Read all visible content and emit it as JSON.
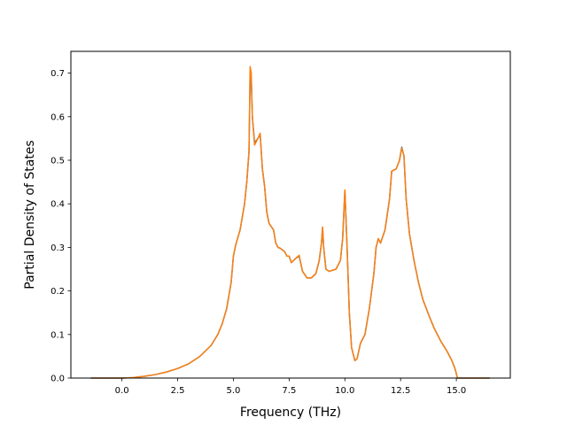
{
  "chart_data": {
    "type": "line",
    "title": "",
    "xlabel": "Frequency (THz)",
    "ylabel": "Partial Density of States",
    "xlim": [
      -2.29,
      17.42
    ],
    "ylim": [
      0.0,
      0.75
    ],
    "xticks": [
      0.0,
      2.5,
      5.0,
      7.5,
      10.0,
      12.5,
      15.0
    ],
    "xtick_labels": [
      "0.0",
      "2.5",
      "5.0",
      "7.5",
      "10.0",
      "12.5",
      "15.0"
    ],
    "yticks": [
      0.0,
      0.1,
      0.2,
      0.3,
      0.4,
      0.5,
      0.6,
      0.7
    ],
    "ytick_labels": [
      "0.0",
      "0.1",
      "0.2",
      "0.3",
      "0.4",
      "0.5",
      "0.6",
      "0.7"
    ],
    "grid": false,
    "legend": "none",
    "series": [
      {
        "color": "#1f77b4",
        "points": [
          [
            -1.4,
            0.0
          ],
          [
            0.0,
            0.0
          ],
          [
            0.5,
            0.001
          ],
          [
            1.0,
            0.004
          ],
          [
            1.5,
            0.008
          ],
          [
            2.0,
            0.014
          ],
          [
            2.5,
            0.022
          ],
          [
            3.0,
            0.033
          ],
          [
            3.5,
            0.05
          ],
          [
            4.0,
            0.075
          ],
          [
            4.3,
            0.1
          ],
          [
            4.5,
            0.125
          ],
          [
            4.7,
            0.16
          ],
          [
            4.9,
            0.22
          ],
          [
            5.0,
            0.28
          ],
          [
            5.1,
            0.305
          ],
          [
            5.3,
            0.34
          ],
          [
            5.5,
            0.4
          ],
          [
            5.6,
            0.45
          ],
          [
            5.7,
            0.52
          ],
          [
            5.75,
            0.7
          ],
          [
            5.8,
            0.69
          ],
          [
            5.85,
            0.6
          ],
          [
            5.95,
            0.54
          ],
          [
            6.1,
            0.55
          ],
          [
            6.2,
            0.56
          ],
          [
            6.3,
            0.48
          ],
          [
            6.4,
            0.44
          ],
          [
            6.5,
            0.38
          ],
          [
            6.6,
            0.355
          ],
          [
            6.8,
            0.34
          ],
          [
            6.9,
            0.31
          ],
          [
            7.0,
            0.3
          ],
          [
            7.1,
            0.298
          ],
          [
            7.3,
            0.29
          ],
          [
            7.4,
            0.28
          ],
          [
            7.5,
            0.28
          ],
          [
            7.6,
            0.265
          ],
          [
            7.8,
            0.275
          ],
          [
            7.95,
            0.28
          ],
          [
            8.1,
            0.245
          ],
          [
            8.3,
            0.23
          ],
          [
            8.5,
            0.23
          ],
          [
            8.7,
            0.24
          ],
          [
            8.85,
            0.27
          ],
          [
            8.95,
            0.31
          ],
          [
            9.0,
            0.345
          ],
          [
            9.05,
            0.3
          ],
          [
            9.15,
            0.25
          ],
          [
            9.3,
            0.245
          ],
          [
            9.6,
            0.25
          ],
          [
            9.8,
            0.27
          ],
          [
            9.9,
            0.32
          ],
          [
            10.0,
            0.43
          ],
          [
            10.1,
            0.3
          ],
          [
            10.2,
            0.15
          ],
          [
            10.3,
            0.07
          ],
          [
            10.45,
            0.04
          ],
          [
            10.55,
            0.045
          ],
          [
            10.7,
            0.08
          ],
          [
            10.9,
            0.1
          ],
          [
            11.1,
            0.16
          ],
          [
            11.3,
            0.24
          ],
          [
            11.4,
            0.3
          ],
          [
            11.5,
            0.32
          ],
          [
            11.6,
            0.31
          ],
          [
            11.8,
            0.34
          ],
          [
            12.0,
            0.41
          ],
          [
            12.1,
            0.475
          ],
          [
            12.3,
            0.48
          ],
          [
            12.45,
            0.5
          ],
          [
            12.55,
            0.53
          ],
          [
            12.65,
            0.51
          ],
          [
            12.75,
            0.41
          ],
          [
            12.9,
            0.33
          ],
          [
            13.1,
            0.27
          ],
          [
            13.3,
            0.22
          ],
          [
            13.5,
            0.18
          ],
          [
            13.8,
            0.14
          ],
          [
            14.0,
            0.115
          ],
          [
            14.3,
            0.085
          ],
          [
            14.6,
            0.06
          ],
          [
            14.8,
            0.04
          ],
          [
            14.95,
            0.02
          ],
          [
            15.05,
            0.0
          ],
          [
            15.5,
            0.0
          ],
          [
            16.5,
            0.0
          ]
        ]
      },
      {
        "color": "#ff7f0e",
        "points": [
          [
            -1.4,
            0.0
          ],
          [
            0.0,
            0.0
          ],
          [
            0.5,
            0.001
          ],
          [
            1.0,
            0.004
          ],
          [
            1.5,
            0.008
          ],
          [
            2.0,
            0.014
          ],
          [
            2.5,
            0.022
          ],
          [
            3.0,
            0.033
          ],
          [
            3.5,
            0.05
          ],
          [
            4.0,
            0.075
          ],
          [
            4.3,
            0.1
          ],
          [
            4.5,
            0.125
          ],
          [
            4.7,
            0.16
          ],
          [
            4.9,
            0.22
          ],
          [
            5.0,
            0.28
          ],
          [
            5.1,
            0.305
          ],
          [
            5.3,
            0.34
          ],
          [
            5.5,
            0.4
          ],
          [
            5.6,
            0.45
          ],
          [
            5.7,
            0.52
          ],
          [
            5.75,
            0.715
          ],
          [
            5.8,
            0.7
          ],
          [
            5.85,
            0.6
          ],
          [
            5.95,
            0.535
          ],
          [
            6.1,
            0.55
          ],
          [
            6.2,
            0.562
          ],
          [
            6.3,
            0.48
          ],
          [
            6.4,
            0.44
          ],
          [
            6.5,
            0.38
          ],
          [
            6.6,
            0.355
          ],
          [
            6.8,
            0.34
          ],
          [
            6.9,
            0.31
          ],
          [
            7.0,
            0.3
          ],
          [
            7.1,
            0.298
          ],
          [
            7.3,
            0.29
          ],
          [
            7.4,
            0.28
          ],
          [
            7.5,
            0.28
          ],
          [
            7.6,
            0.265
          ],
          [
            7.8,
            0.275
          ],
          [
            7.95,
            0.282
          ],
          [
            8.1,
            0.245
          ],
          [
            8.3,
            0.23
          ],
          [
            8.5,
            0.23
          ],
          [
            8.7,
            0.24
          ],
          [
            8.85,
            0.27
          ],
          [
            8.95,
            0.31
          ],
          [
            9.0,
            0.347
          ],
          [
            9.05,
            0.3
          ],
          [
            9.15,
            0.25
          ],
          [
            9.3,
            0.245
          ],
          [
            9.6,
            0.25
          ],
          [
            9.8,
            0.27
          ],
          [
            9.9,
            0.32
          ],
          [
            10.0,
            0.432
          ],
          [
            10.1,
            0.3
          ],
          [
            10.2,
            0.15
          ],
          [
            10.3,
            0.07
          ],
          [
            10.45,
            0.04
          ],
          [
            10.55,
            0.045
          ],
          [
            10.7,
            0.08
          ],
          [
            10.9,
            0.1
          ],
          [
            11.1,
            0.16
          ],
          [
            11.3,
            0.24
          ],
          [
            11.4,
            0.3
          ],
          [
            11.5,
            0.32
          ],
          [
            11.6,
            0.31
          ],
          [
            11.8,
            0.34
          ],
          [
            12.0,
            0.41
          ],
          [
            12.1,
            0.475
          ],
          [
            12.3,
            0.48
          ],
          [
            12.45,
            0.5
          ],
          [
            12.55,
            0.528
          ],
          [
            12.65,
            0.51
          ],
          [
            12.75,
            0.41
          ],
          [
            12.9,
            0.33
          ],
          [
            13.1,
            0.27
          ],
          [
            13.3,
            0.22
          ],
          [
            13.5,
            0.18
          ],
          [
            13.8,
            0.14
          ],
          [
            14.0,
            0.115
          ],
          [
            14.3,
            0.085
          ],
          [
            14.6,
            0.06
          ],
          [
            14.8,
            0.04
          ],
          [
            14.95,
            0.02
          ],
          [
            15.05,
            0.0
          ],
          [
            15.5,
            0.0
          ],
          [
            16.5,
            0.0
          ]
        ]
      }
    ]
  }
}
